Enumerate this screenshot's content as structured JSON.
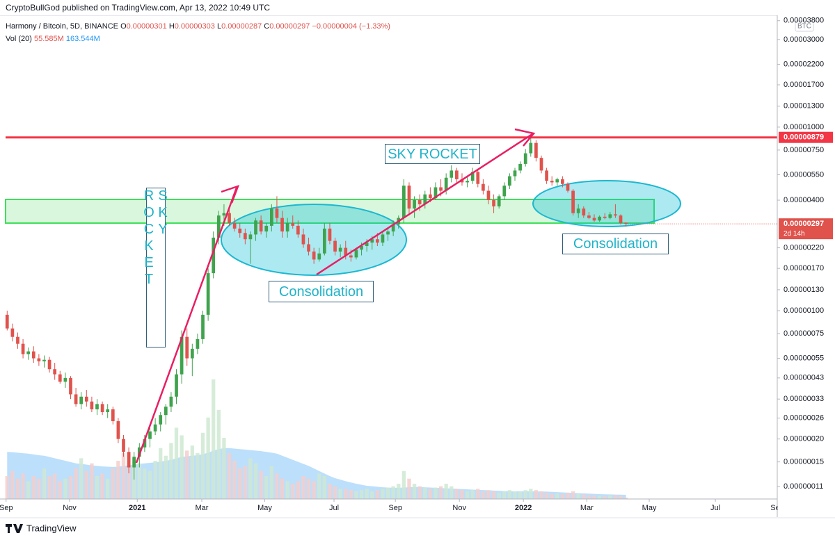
{
  "chart_data": {
    "type": "candlestick",
    "credit": "CryptoBullGod published on TradingView.com, Apr 13, 2022 10:49 UTC",
    "title": "Harmony / Bitcoin, 5D, BINANCE",
    "ohlc": [
      [
        "O",
        "0.00000301"
      ],
      [
        "H",
        "0.00000303"
      ],
      [
        "L",
        "0.00000287"
      ],
      [
        "C",
        "0.00000297"
      ]
    ],
    "change": "−0.00000004 (−1.33%)",
    "volume_legend": {
      "name": "Vol (20)",
      "value_label": "55.585M",
      "ma_label": "163.544M"
    },
    "currency": "BTC",
    "brand": "TradingView",
    "up_color": "#3fa34d",
    "down_color": "#e0524c",
    "volume_up_color": "#cfe9d2",
    "volume_down_color": "#f4cfcd",
    "volume_ma_color": "#90caf9",
    "log_scale": true,
    "ylim": [
      9.42e-08,
      4.066e-05
    ],
    "yticks": [
      {
        "value": 3.8e-05,
        "label": "0.00003800"
      },
      {
        "value": 3e-05,
        "label": "0.00003000"
      },
      {
        "value": 2.2e-05,
        "label": "0.00002200"
      },
      {
        "value": 1.7e-05,
        "label": "0.00001700"
      },
      {
        "value": 1.3e-05,
        "label": "0.00001300"
      },
      {
        "value": 1e-05,
        "label": "0.00001000"
      },
      {
        "value": 7.5e-06,
        "label": "0.00000750"
      },
      {
        "value": 5.5e-06,
        "label": "0.00000550"
      },
      {
        "value": 4e-06,
        "label": "0.00000400"
      },
      {
        "value": 2.2e-06,
        "label": "0.00000220"
      },
      {
        "value": 1.7e-06,
        "label": "0.00000170"
      },
      {
        "value": 1.3e-06,
        "label": "0.00000130"
      },
      {
        "value": 1e-06,
        "label": "0.00000100"
      },
      {
        "value": 7.5e-07,
        "label": "0.00000075"
      },
      {
        "value": 5.5e-07,
        "label": "0.00000055"
      },
      {
        "value": 4.3e-07,
        "label": "0.00000043"
      },
      {
        "value": 3.3e-07,
        "label": "0.00000033"
      },
      {
        "value": 2.6e-07,
        "label": "0.00000026"
      },
      {
        "value": 2e-07,
        "label": "0.00000020"
      },
      {
        "value": 1.5e-07,
        "label": "0.00000015"
      },
      {
        "value": 1.1e-07,
        "label": "0.00000011"
      }
    ],
    "xlim": [
      -0.3,
      145.6
    ],
    "xticks": [
      {
        "value": -0.2,
        "label": "Sep"
      },
      {
        "value": 11.8,
        "label": "Nov"
      },
      {
        "value": 24.6,
        "label": "2021"
      },
      {
        "value": 36.8,
        "label": "Mar"
      },
      {
        "value": 48.7,
        "label": "May"
      },
      {
        "value": 61.8,
        "label": "Jul"
      },
      {
        "value": 73.4,
        "label": "Sep"
      },
      {
        "value": 85.5,
        "label": "Nov"
      },
      {
        "value": 97.6,
        "label": "2022"
      },
      {
        "value": 109.6,
        "label": "Mar"
      },
      {
        "value": 121.4,
        "label": "May"
      },
      {
        "value": 133.9,
        "label": "Jul"
      },
      {
        "value": 145.6,
        "label": "Sep"
      }
    ],
    "levels": [
      {
        "value": 8.79e-06,
        "label": "0.00000879",
        "color": "#f23645"
      }
    ],
    "last_price": {
      "value": 2.97e-06,
      "label": "0.00000297",
      "countdown": "2d 14h"
    },
    "annotations": [
      "SKY ROCKET",
      "SKY ROCKET",
      "Consolidation",
      "Consolidation"
    ],
    "candles": [
      [
        9.5e-07,
        1e-06,
        7.8e-07,
        8e-07
      ],
      [
        8e-07,
        8.5e-07,
        6.8e-07,
        7.2e-07
      ],
      [
        7.2e-07,
        7.6e-07,
        6.2e-07,
        6.6e-07
      ],
      [
        6.6e-07,
        7e-07,
        5.5e-07,
        5.8e-07
      ],
      [
        5.8e-07,
        6.3e-07,
        5.4e-07,
        6e-07
      ],
      [
        6e-07,
        6.4e-07,
        5.2e-07,
        5.5e-07
      ],
      [
        5.5e-07,
        5.8e-07,
        5e-07,
        5.3e-07
      ],
      [
        5.3e-07,
        5.7e-07,
        4.9e-07,
        5.4e-07
      ],
      [
        5.4e-07,
        5.6e-07,
        4.6e-07,
        4.8e-07
      ],
      [
        4.8e-07,
        5.2e-07,
        4.2e-07,
        4.5e-07
      ],
      [
        4.5e-07,
        4.7e-07,
        4e-07,
        4.1e-07
      ],
      [
        4.1e-07,
        4.6e-07,
        3.8e-07,
        4.3e-07
      ],
      [
        4.3e-07,
        4.4e-07,
        3.3e-07,
        3.5e-07
      ],
      [
        3.5e-07,
        3.8e-07,
        3e-07,
        3.1e-07
      ],
      [
        3.1e-07,
        3.6e-07,
        2.9e-07,
        3.4e-07
      ],
      [
        3.4e-07,
        3.7e-07,
        3e-07,
        3.2e-07
      ],
      [
        3.2e-07,
        3.4e-07,
        2.8e-07,
        2.9e-07
      ],
      [
        2.9e-07,
        3.3e-07,
        2.7e-07,
        3.1e-07
      ],
      [
        3.1e-07,
        3.2e-07,
        2.7e-07,
        2.8e-07
      ],
      [
        2.8e-07,
        3.1e-07,
        2.6e-07,
        2.9e-07
      ],
      [
        2.9e-07,
        3e-07,
        2.4e-07,
        2.5e-07
      ],
      [
        2.5e-07,
        2.6e-07,
        1.9e-07,
        2e-07
      ],
      [
        2e-07,
        2.1e-07,
        1.6e-07,
        1.7e-07
      ],
      [
        1.7e-07,
        1.8e-07,
        1.3e-07,
        1.4e-07
      ],
      [
        1.4e-07,
        1.7e-07,
        1.2e-07,
        1.6e-07
      ],
      [
        1.6e-07,
        1.9e-07,
        1.4e-07,
        1.8e-07
      ],
      [
        1.8e-07,
        2.1e-07,
        1.7e-07,
        2e-07
      ],
      [
        2e-07,
        2.3e-07,
        1.8e-07,
        2.2e-07
      ],
      [
        2.2e-07,
        2.6e-07,
        2.1e-07,
        2.4e-07
      ],
      [
        2.4e-07,
        2.8e-07,
        2.2e-07,
        2.7e-07
      ],
      [
        2.7e-07,
        3.1e-07,
        2.4e-07,
        3e-07
      ],
      [
        3e-07,
        3.6e-07,
        2.8e-07,
        3.4e-07
      ],
      [
        3.4e-07,
        4.8e-07,
        3.1e-07,
        4.5e-07
      ],
      [
        4.5e-07,
        7.8e-07,
        4e-07,
        7.2e-07
      ],
      [
        7.2e-07,
        8e-07,
        5e-07,
        5.5e-07
      ],
      [
        5.5e-07,
        6.6e-07,
        4.4e-07,
        6.2e-07
      ],
      [
        6.2e-07,
        7.5e-07,
        5.8e-07,
        7e-07
      ],
      [
        7e-07,
        1e-06,
        6.6e-07,
        9.5e-07
      ],
      [
        9.5e-07,
        1.7e-06,
        8.8e-07,
        1.6e-06
      ],
      [
        1.6e-06,
        2.7e-06,
        1.5e-06,
        2.5e-06
      ],
      [
        2.5e-06,
        3.5e-06,
        2.3e-06,
        3.3e-06
      ],
      [
        3.3e-06,
        3.8e-06,
        2.9e-06,
        3.4e-06
      ],
      [
        3.4e-06,
        3.6e-06,
        2.9e-06,
        3e-06
      ],
      [
        3e-06,
        3.2e-06,
        2.7e-06,
        2.8e-06
      ],
      [
        2.8e-06,
        3e-06,
        2.5e-06,
        2.65e-06
      ],
      [
        2.65e-06,
        2.8e-06,
        2.3e-06,
        2.45e-06
      ],
      [
        2.45e-06,
        2.7e-06,
        1.8e-06,
        2.6e-06
      ],
      [
        2.6e-06,
        3.2e-06,
        2.4e-06,
        3.1e-06
      ],
      [
        3.1e-06,
        3.3e-06,
        2.6e-06,
        2.7e-06
      ],
      [
        2.7e-06,
        3e-06,
        2.5e-06,
        2.9e-06
      ],
      [
        2.9e-06,
        3.8e-06,
        2.7e-06,
        3.6e-06
      ],
      [
        3.6e-06,
        4.2e-06,
        3e-06,
        3.2e-06
      ],
      [
        3.2e-06,
        3.5e-06,
        2.5e-06,
        2.7e-06
      ],
      [
        2.7e-06,
        3.2e-06,
        2.5e-06,
        3e-06
      ],
      [
        3e-06,
        3.3e-06,
        2.8e-06,
        2.9e-06
      ],
      [
        2.9e-06,
        3.1e-06,
        2.5e-06,
        2.6e-06
      ],
      [
        2.6e-06,
        2.8e-06,
        2.2e-06,
        2.3e-06
      ],
      [
        2.3e-06,
        2.5e-06,
        2e-06,
        2.1e-06
      ],
      [
        2.1e-06,
        2.2e-06,
        1.8e-06,
        1.9e-06
      ],
      [
        1.9e-06,
        2.2e-06,
        1.85e-06,
        2.05e-06
      ],
      [
        2.05e-06,
        3e-06,
        2e-06,
        2.8e-06
      ],
      [
        2.8e-06,
        3e-06,
        2.3e-06,
        2.4e-06
      ],
      [
        2.4e-06,
        2.5e-06,
        2e-06,
        2.1e-06
      ],
      [
        2.1e-06,
        2.3e-06,
        1.95e-06,
        2.2e-06
      ],
      [
        2.2e-06,
        2.4e-06,
        1.9e-06,
        2e-06
      ],
      [
        2e-06,
        2.15e-06,
        1.85e-06,
        1.95e-06
      ],
      [
        1.95e-06,
        2.2e-06,
        1.9e-06,
        2.15e-06
      ],
      [
        2.15e-06,
        2.35e-06,
        2e-06,
        2.25e-06
      ],
      [
        2.25e-06,
        2.45e-06,
        2.1e-06,
        2.35e-06
      ],
      [
        2.35e-06,
        2.55e-06,
        2.15e-06,
        2.45e-06
      ],
      [
        2.45e-06,
        2.65e-06,
        2.25e-06,
        2.35e-06
      ],
      [
        2.35e-06,
        2.7e-06,
        2.25e-06,
        2.6e-06
      ],
      [
        2.6e-06,
        2.8e-06,
        2.4e-06,
        2.7e-06
      ],
      [
        2.7e-06,
        3.1e-06,
        2.55e-06,
        2.95e-06
      ],
      [
        2.95e-06,
        3.3e-06,
        2.8e-06,
        3.2e-06
      ],
      [
        3.2e-06,
        5.2e-06,
        3e-06,
        4.8e-06
      ],
      [
        4.8e-06,
        5e-06,
        3.3e-06,
        3.6e-06
      ],
      [
        3.6e-06,
        4.2e-06,
        3.2e-06,
        4e-06
      ],
      [
        4e-06,
        4.3e-06,
        3.5e-06,
        3.8e-06
      ],
      [
        3.8e-06,
        4.5e-06,
        3.6e-06,
        4.3e-06
      ],
      [
        4.3e-06,
        4.7e-06,
        3.9e-06,
        4.1e-06
      ],
      [
        4.1e-06,
        5e-06,
        4e-06,
        4.7e-06
      ],
      [
        4.7e-06,
        5.2e-06,
        4.2e-06,
        4.5e-06
      ],
      [
        4.5e-06,
        5.6e-06,
        4.3e-06,
        5.3e-06
      ],
      [
        5.3e-06,
        6.2e-06,
        5e-06,
        5.8e-06
      ],
      [
        5.8e-06,
        6e-06,
        5e-06,
        5.2e-06
      ],
      [
        5.2e-06,
        5.6e-06,
        4.8e-06,
        5e-06
      ],
      [
        5e-06,
        5.4e-06,
        4.7e-06,
        5.1e-06
      ],
      [
        5.1e-06,
        6e-06,
        4.9e-06,
        5.7e-06
      ],
      [
        5.7e-06,
        5.9e-06,
        4.7e-06,
        4.9e-06
      ],
      [
        4.9e-06,
        5.2e-06,
        4.3e-06,
        4.5e-06
      ],
      [
        4.5e-06,
        4.8e-06,
        3.8e-06,
        4e-06
      ],
      [
        4e-06,
        4.3e-06,
        3.4e-06,
        3.7e-06
      ],
      [
        3.7e-06,
        4.3e-06,
        3.6e-06,
        4.2e-06
      ],
      [
        4.2e-06,
        5e-06,
        4e-06,
        4.8e-06
      ],
      [
        4.8e-06,
        5.6e-06,
        4.6e-06,
        5.4e-06
      ],
      [
        5.4e-06,
        6e-06,
        5.1e-06,
        5.8e-06
      ],
      [
        5.8e-06,
        6.5e-06,
        5.6e-06,
        6.3e-06
      ],
      [
        6.3e-06,
        7.6e-06,
        6.1e-06,
        7.2e-06
      ],
      [
        7.2e-06,
        8.7e-06,
        6.9e-06,
        8.2e-06
      ],
      [
        8.2e-06,
        8.5e-06,
        6.5e-06,
        6.8e-06
      ],
      [
        6.8e-06,
        7e-06,
        5.6e-06,
        5.8e-06
      ],
      [
        5.8e-06,
        6e-06,
        4.9e-06,
        5.1e-06
      ],
      [
        5.1e-06,
        5.4e-06,
        4.8e-06,
        5e-06
      ],
      [
        5e-06,
        5.3e-06,
        4.8e-06,
        5.2e-06
      ],
      [
        5.2e-06,
        5.4e-06,
        4.7e-06,
        4.9e-06
      ],
      [
        4.9e-06,
        5e-06,
        4.4e-06,
        4.5e-06
      ],
      [
        4.5e-06,
        4.6e-06,
        3.3e-06,
        3.4e-06
      ],
      [
        3.4e-06,
        3.8e-06,
        3.2e-06,
        3.6e-06
      ],
      [
        3.6e-06,
        3.7e-06,
        3.2e-06,
        3.3e-06
      ],
      [
        3.3e-06,
        3.45e-06,
        3.15e-06,
        3.2e-06
      ],
      [
        3.2e-06,
        3.35e-06,
        3.05e-06,
        3.1e-06
      ],
      [
        3.1e-06,
        3.3e-06,
        3.05e-06,
        3.25e-06
      ],
      [
        3.25e-06,
        3.4e-06,
        3.15e-06,
        3.2e-06
      ],
      [
        3.2e-06,
        3.45e-06,
        3.15e-06,
        3.35e-06
      ],
      [
        3.35e-06,
        3.8e-06,
        3.2e-06,
        3.3e-06
      ],
      [
        3.3e-06,
        3.35e-06,
        2.95e-06,
        3e-06
      ],
      [
        3.01e-06,
        3.03e-06,
        2.87e-06,
        2.97e-06
      ]
    ],
    "volume_ylim": [
      0,
      19000
    ],
    "volume": [
      900,
      1100,
      800,
      1000,
      700,
      900,
      800,
      1200,
      900,
      1000,
      700,
      800,
      900,
      1200,
      1600,
      1100,
      1400,
      900,
      1000,
      800,
      1200,
      1500,
      1800,
      1300,
      1600,
      1400,
      1200,
      1100,
      1500,
      2000,
      1700,
      2200,
      2800,
      2500,
      1900,
      2100,
      1800,
      2600,
      3200,
      4700,
      3500,
      2400,
      1800,
      1500,
      1200,
      1300,
      1600,
      1400,
      1100,
      900,
      1300,
      1000,
      800,
      700,
      600,
      700,
      900,
      800,
      700,
      1000,
      900,
      600,
      500,
      400,
      400,
      350,
      300,
      350,
      400,
      300,
      350,
      400,
      450,
      500,
      600,
      1100,
      800,
      600,
      500,
      450,
      400,
      450,
      500,
      600,
      500,
      400,
      350,
      300,
      350,
      400,
      300,
      350,
      300,
      250,
      300,
      350,
      300,
      280,
      350,
      400,
      350,
      300,
      250,
      200,
      220,
      200,
      250,
      300,
      200,
      180,
      150,
      140,
      130,
      120,
      150,
      160,
      120,
      55.585
    ],
    "volume_ma": [
      1850,
      1840,
      1820,
      1800,
      1780,
      1750,
      1720,
      1700,
      1650,
      1600,
      1550,
      1500,
      1450,
      1400,
      1380,
      1350,
      1320,
      1300,
      1280,
      1270,
      1260,
      1270,
      1300,
      1320,
      1350,
      1380,
      1400,
      1420,
      1440,
      1470,
      1500,
      1540,
      1600,
      1650,
      1680,
      1700,
      1720,
      1760,
      1820,
      1900,
      1960,
      2000,
      2000,
      1980,
      1960,
      1940,
      1920,
      1900,
      1880,
      1850,
      1820,
      1780,
      1700,
      1620,
      1540,
      1460,
      1380,
      1300,
      1200,
      1100,
      1000,
      900,
      820,
      760,
      700,
      650,
      600,
      560,
      520,
      500,
      480,
      460,
      450,
      440,
      440,
      450,
      460,
      470,
      470,
      460,
      450,
      440,
      430,
      420,
      410,
      400,
      390,
      380,
      370,
      360,
      350,
      340,
      330,
      320,
      310,
      300,
      300,
      300,
      300,
      300,
      300,
      295,
      290,
      280,
      270,
      260,
      250,
      240,
      230,
      220,
      210,
      200,
      190,
      185,
      180,
      175,
      170,
      163.544
    ]
  }
}
